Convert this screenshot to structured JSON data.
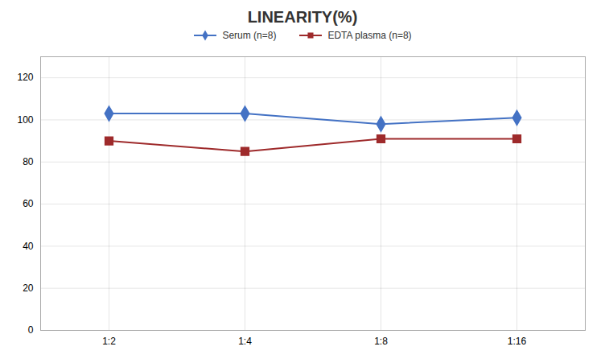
{
  "chart_data": {
    "type": "line",
    "title": "LINEARITY(%)",
    "categories": [
      "1:2",
      "1:4",
      "1:8",
      "1:16"
    ],
    "series": [
      {
        "name": "Serum (n=8)",
        "color": "#4472C4",
        "marker": "diamond",
        "values": [
          103,
          103,
          98,
          101
        ]
      },
      {
        "name": "EDTA plasma (n=8)",
        "color": "#9E2A2B",
        "marker": "square",
        "values": [
          90,
          85,
          91,
          91
        ]
      }
    ],
    "ylim": [
      0,
      130
    ],
    "yticks": [
      0,
      20,
      40,
      60,
      80,
      100,
      120
    ],
    "grid": true,
    "legend": "top"
  }
}
